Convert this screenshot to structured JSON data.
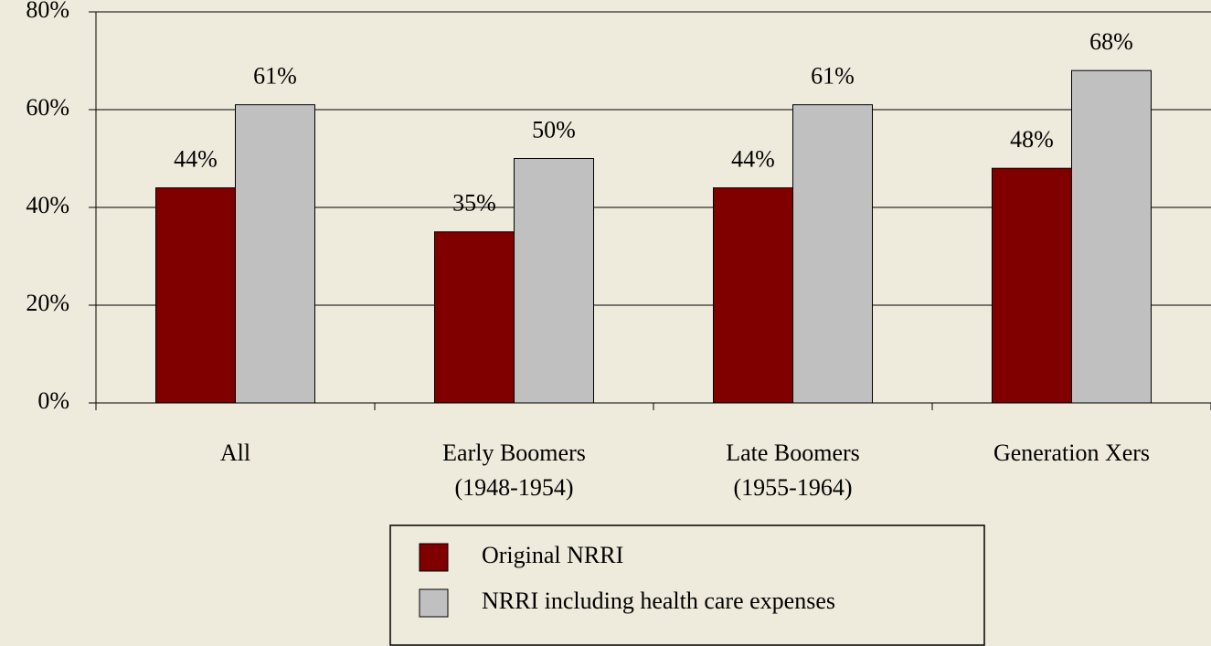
{
  "chart_data": {
    "type": "bar",
    "categories": [
      [
        "All"
      ],
      [
        "Early Boomers",
        "(1948-1954)"
      ],
      [
        "Late Boomers",
        "(1955-1964)"
      ],
      [
        "Generation Xers"
      ]
    ],
    "series": [
      {
        "name": "Original NRRI",
        "color": "#800000",
        "values": [
          44,
          35,
          44,
          48
        ],
        "value_labels": [
          "44%",
          "35%",
          "44%",
          "48%"
        ]
      },
      {
        "name": "NRRI including health care expenses",
        "color": "#c0c0c0",
        "values": [
          61,
          50,
          61,
          68
        ],
        "value_labels": [
          "61%",
          "50%",
          "61%",
          "68%"
        ]
      }
    ],
    "ylim": [
      0,
      80
    ],
    "yticks": [
      {
        "value": 0,
        "label": "0%"
      },
      {
        "value": 20,
        "label": "20%"
      },
      {
        "value": 40,
        "label": "40%"
      },
      {
        "value": 60,
        "label": "60%"
      },
      {
        "value": 80,
        "label": "80%"
      }
    ],
    "grid": true,
    "legend": "bottom"
  }
}
